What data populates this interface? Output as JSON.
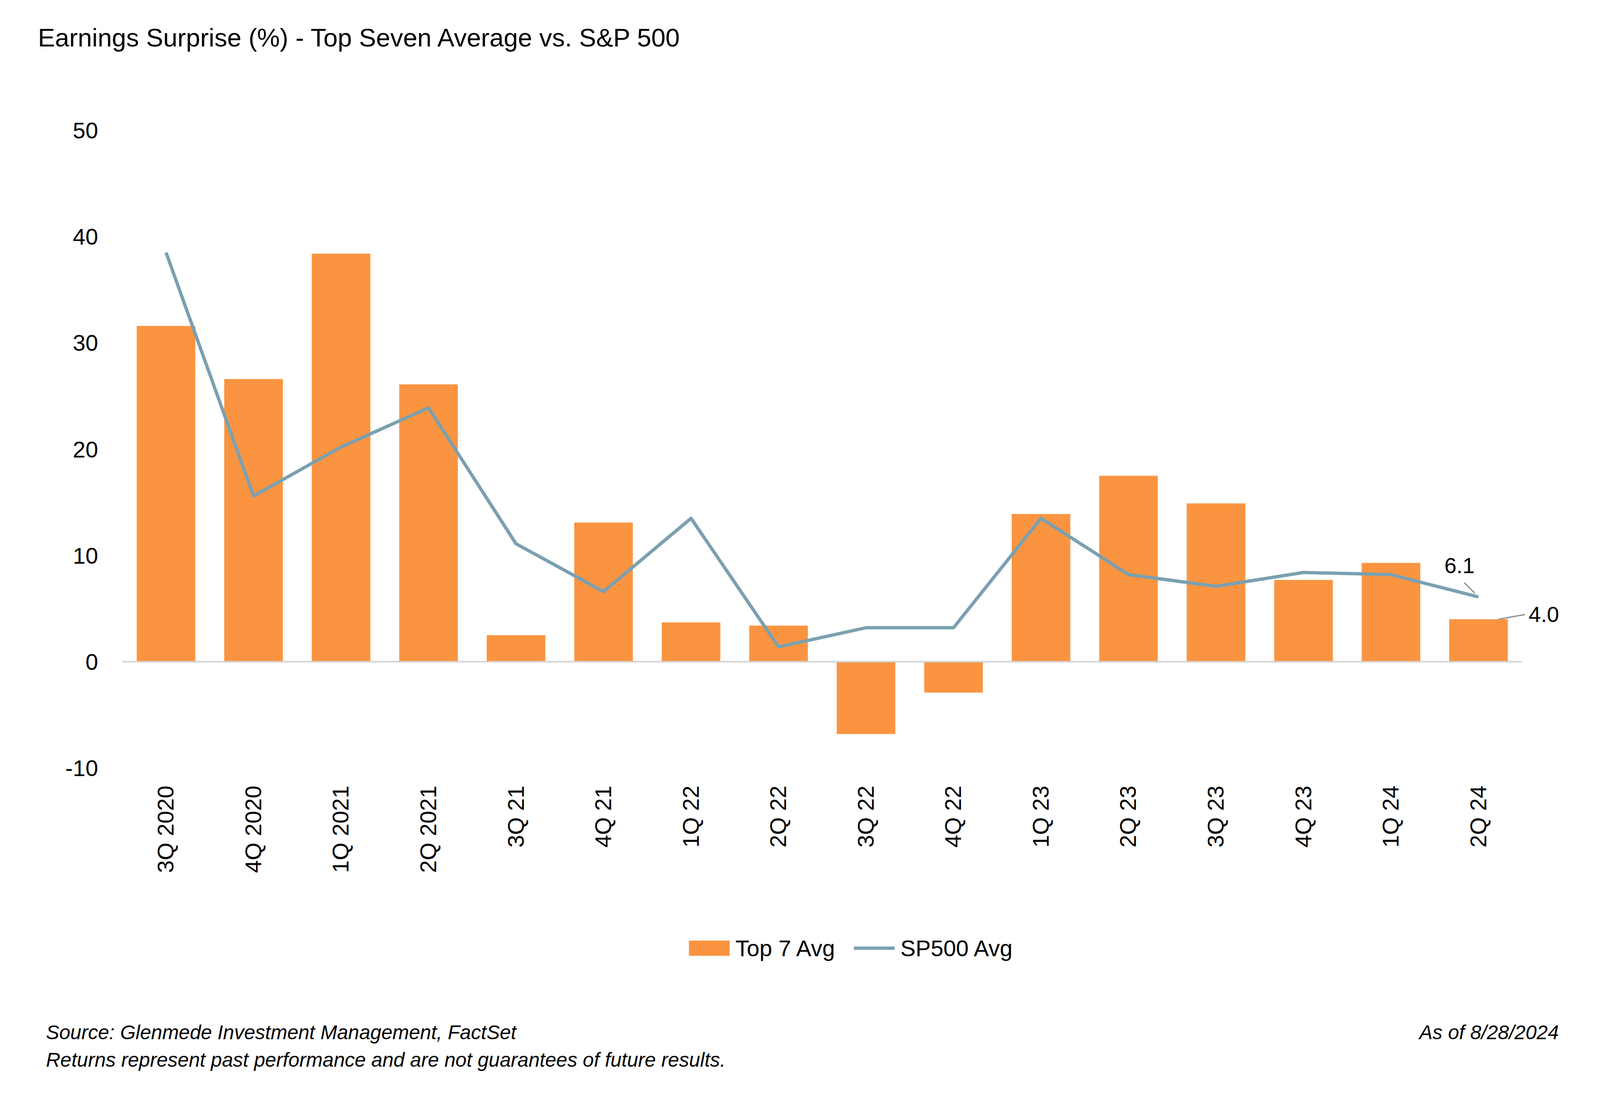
{
  "chart_data": {
    "type": "bar",
    "title": "Earnings Surprise (%) - Top Seven Average vs. S&P 500",
    "categories": [
      "3Q 2020",
      "4Q 2020",
      "1Q 2021",
      "2Q 2021",
      "3Q 21",
      "4Q 21",
      "1Q 22",
      "2Q 22",
      "3Q 22",
      "4Q 22",
      "1Q 23",
      "2Q 23",
      "3Q 23",
      "4Q 23",
      "1Q 24",
      "2Q 24"
    ],
    "series": [
      {
        "name": "Top 7 Avg",
        "type": "bar",
        "color": "#fb9440",
        "values": [
          31.6,
          26.6,
          38.4,
          26.1,
          2.5,
          13.1,
          3.7,
          3.4,
          -6.8,
          -2.9,
          13.9,
          17.5,
          14.9,
          7.7,
          9.3,
          4.0
        ],
        "value_labels": [
          null,
          null,
          null,
          null,
          null,
          null,
          null,
          null,
          null,
          null,
          null,
          null,
          null,
          null,
          null,
          "4.0"
        ]
      },
      {
        "name": "SP500 Avg",
        "type": "line",
        "color": "#7ba0b0",
        "values": [
          38.5,
          15.6,
          20.2,
          23.9,
          11.1,
          6.6,
          13.5,
          1.4,
          3.2,
          3.2,
          13.5,
          8.2,
          7.1,
          8.4,
          8.2,
          6.1
        ],
        "value_labels": [
          null,
          null,
          null,
          null,
          null,
          null,
          null,
          null,
          null,
          null,
          null,
          null,
          null,
          null,
          null,
          "6.1"
        ]
      }
    ],
    "ylim": [
      -10,
      50
    ],
    "yticks": [
      -10,
      0,
      10,
      20,
      30,
      40,
      50
    ],
    "grid": false,
    "legend": "bottom",
    "footnotes": [
      "Source: Glenmede Investment Management, FactSet",
      "Returns represent past performance and are not guarantees of future results."
    ],
    "as_of": "As of 8/28/2024"
  }
}
